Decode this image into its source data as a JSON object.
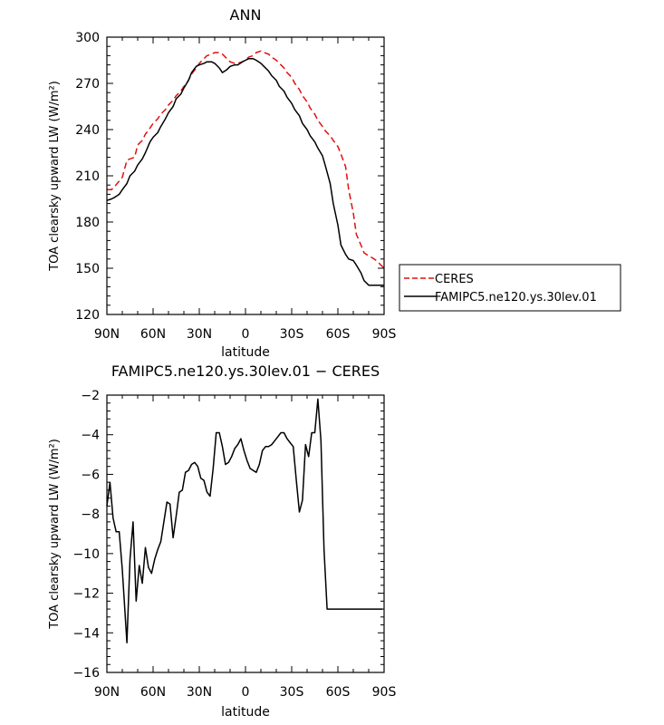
{
  "chart_data": [
    {
      "type": "line",
      "title": "ANN",
      "xlabel": "latitude",
      "ylabel": "TOA clearsky upward LW (W/m²)",
      "xlim": [
        90,
        -90
      ],
      "ylim": [
        120,
        300
      ],
      "x_ticks": [
        90,
        60,
        30,
        0,
        -30,
        -60,
        -90
      ],
      "x_tick_labels": [
        "90N",
        "60N",
        "30N",
        "0",
        "30S",
        "60S",
        "90S"
      ],
      "y_ticks": [
        120,
        150,
        180,
        210,
        240,
        270,
        300
      ],
      "y_tick_labels": [
        "120",
        "150",
        "180",
        "210",
        "240",
        "270",
        "300"
      ],
      "legend_position": "right",
      "grid": false,
      "series": [
        {
          "name": "CERES",
          "color": "#e01010",
          "dash": "dashed",
          "x": [
            90,
            87,
            85,
            80,
            77,
            75,
            72,
            70,
            67,
            65,
            62,
            60,
            57,
            55,
            52,
            50,
            47,
            45,
            42,
            40,
            37,
            35,
            32,
            30,
            27,
            25,
            22,
            20,
            17,
            15,
            12,
            10,
            7,
            5,
            2,
            0,
            -2,
            -5,
            -7,
            -10,
            -12,
            -15,
            -17,
            -20,
            -22,
            -25,
            -27,
            -30,
            -32,
            -35,
            -37,
            -40,
            -42,
            -45,
            -47,
            -50,
            -52,
            -55,
            -57,
            -60,
            -62,
            -65,
            -67,
            -70,
            -72,
            -75,
            -77,
            -80,
            -82,
            -85,
            -87,
            -90
          ],
          "y": [
            201,
            201,
            203,
            209,
            220,
            221,
            222,
            230,
            233,
            237,
            241,
            244,
            247,
            250,
            253,
            256,
            259,
            262,
            265,
            268,
            272,
            276,
            280,
            283,
            286,
            288,
            289,
            290,
            290,
            289,
            286,
            284,
            283,
            283,
            284,
            285,
            287,
            288,
            290,
            291,
            290,
            289,
            287,
            285,
            283,
            280,
            277,
            274,
            270,
            266,
            262,
            258,
            254,
            250,
            246,
            242,
            239,
            236,
            233,
            229,
            224,
            216,
            201,
            186,
            172,
            165,
            160,
            158,
            157,
            155,
            153,
            150
          ]
        },
        {
          "name": "FAMIPC5.ne120.ys.30lev.01",
          "color": "#000000",
          "dash": "solid",
          "x": [
            90,
            87,
            85,
            82,
            80,
            77,
            75,
            72,
            70,
            67,
            65,
            62,
            60,
            57,
            55,
            52,
            50,
            47,
            45,
            42,
            40,
            37,
            35,
            32,
            30,
            27,
            25,
            22,
            20,
            17,
            15,
            12,
            10,
            7,
            5,
            2,
            0,
            -2,
            -5,
            -7,
            -10,
            -12,
            -15,
            -17,
            -20,
            -22,
            -25,
            -27,
            -30,
            -32,
            -35,
            -37,
            -40,
            -42,
            -45,
            -47,
            -50,
            -52,
            -55,
            -57,
            -60,
            -62,
            -65,
            -67,
            -70,
            -72,
            -75,
            -77,
            -80,
            -82,
            -85,
            -87,
            -90
          ],
          "y": [
            194,
            195,
            196,
            198,
            201,
            205,
            210,
            213,
            217,
            221,
            225,
            232,
            235,
            238,
            242,
            247,
            251,
            255,
            260,
            263,
            267,
            272,
            277,
            281,
            282,
            283,
            284,
            284,
            283,
            280,
            277,
            279,
            281,
            282,
            282,
            284,
            285,
            286,
            286,
            285,
            283,
            281,
            278,
            275,
            272,
            268,
            265,
            261,
            257,
            253,
            249,
            244,
            240,
            236,
            232,
            228,
            223,
            216,
            205,
            192,
            178,
            165,
            159,
            156,
            155,
            152,
            147,
            142,
            139,
            139,
            139,
            139,
            139
          ]
        }
      ]
    },
    {
      "type": "line",
      "title": "FAMIPC5.ne120.ys.30lev.01 − CERES",
      "xlabel": "latitude",
      "ylabel": "TOA clearsky upward LW (W/m²)",
      "xlim": [
        90,
        -90
      ],
      "ylim": [
        -16,
        -2
      ],
      "x_ticks": [
        90,
        60,
        30,
        0,
        -30,
        -60,
        -90
      ],
      "x_tick_labels": [
        "90N",
        "60N",
        "30N",
        "0",
        "30S",
        "60S",
        "90S"
      ],
      "y_ticks": [
        -16,
        -14,
        -12,
        -10,
        -8,
        -6,
        -4,
        -2
      ],
      "y_tick_labels": [
        "−16",
        "−14",
        "−12",
        "−10",
        "−8",
        "−6",
        "−4",
        "−2"
      ],
      "grid": false,
      "series": [
        {
          "color": "#000000",
          "dash": "solid",
          "x": [
            90,
            88,
            86,
            84,
            82,
            80,
            77,
            75,
            73,
            71,
            69,
            67,
            65,
            63,
            61,
            59,
            57,
            55,
            53,
            51,
            49,
            47,
            45,
            43,
            41,
            39,
            37,
            35,
            33,
            31,
            29,
            27,
            25,
            23,
            21,
            19,
            17,
            15,
            13,
            11,
            9,
            7,
            5,
            3,
            1,
            -1,
            -3,
            -5,
            -7,
            -9,
            -11,
            -13,
            -15,
            -17,
            -19,
            -21,
            -23,
            -25,
            -27,
            -29,
            -31,
            -33,
            -35,
            -37,
            -39,
            -41,
            -43,
            -45,
            -47,
            -49,
            -51,
            -53,
            -55,
            -57,
            -59,
            -61,
            -63,
            -65,
            -67,
            -69,
            -71,
            -73,
            -75,
            -77,
            -79,
            -81,
            -83,
            -85,
            -87,
            -89
          ],
          "y": [
            -7.6,
            -6.4,
            -8.2,
            -8.9,
            -8.9,
            -10.8,
            -14.5,
            -10.3,
            -8.4,
            -12.4,
            -10.6,
            -11.5,
            -9.7,
            -10.7,
            -11.0,
            -10.3,
            -9.8,
            -9.4,
            -8.4,
            -7.4,
            -7.5,
            -9.2,
            -8.1,
            -6.9,
            -6.8,
            -5.9,
            -5.8,
            -5.5,
            -5.4,
            -5.6,
            -6.2,
            -6.3,
            -6.9,
            -7.1,
            -5.7,
            -3.9,
            -3.9,
            -4.6,
            -5.5,
            -5.4,
            -5.1,
            -4.7,
            -4.5,
            -4.2,
            -4.8,
            -5.3,
            -5.7,
            -5.8,
            -5.9,
            -5.5,
            -4.8,
            -4.6,
            -4.6,
            -4.5,
            -4.3,
            -4.1,
            -3.9,
            -3.9,
            -4.2,
            -4.4,
            -4.6,
            -6.3,
            -7.9,
            -7.3,
            -4.5,
            -5.1,
            -3.9,
            -3.9,
            -2.2,
            -4.3,
            -9.8,
            -12.8,
            -12.8,
            -12.8,
            -12.8,
            -12.8,
            -12.8,
            -12.8,
            -12.8,
            -12.8,
            -12.8,
            -12.8,
            -12.8,
            -12.8,
            -12.8,
            -12.8,
            -12.8,
            -12.8,
            -12.8,
            -12.8
          ]
        }
      ]
    }
  ]
}
